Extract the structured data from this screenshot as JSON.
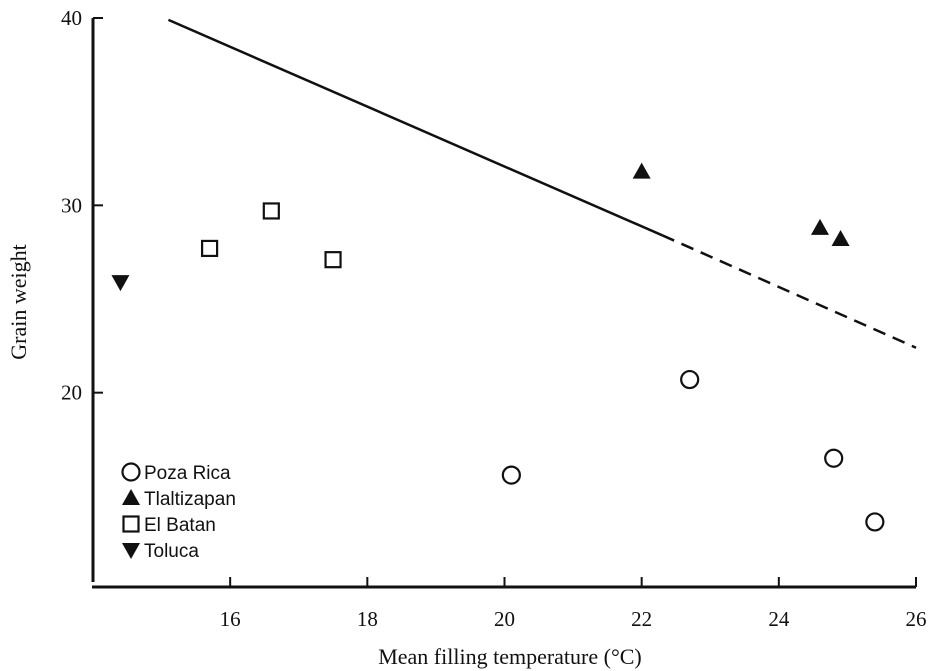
{
  "chart_data": {
    "type": "scatter",
    "xlabel": "Mean filling temperature (°C)",
    "ylabel": "Grain weight",
    "xlim": [
      14,
      26
    ],
    "ylim": [
      10,
      40
    ],
    "x_ticks": [
      {
        "value": 16,
        "label": "16"
      },
      {
        "value": 18,
        "label": "18"
      },
      {
        "value": 20,
        "label": "20"
      },
      {
        "value": 22,
        "label": "22"
      },
      {
        "value": 24,
        "label": "24"
      },
      {
        "value": 26,
        "label": "26"
      }
    ],
    "y_ticks": [
      {
        "value": 20,
        "label": "20"
      },
      {
        "value": 30,
        "label": "30"
      },
      {
        "value": 40,
        "label": "40"
      }
    ],
    "series": [
      {
        "name": "Poza Rica",
        "marker": "open-circle",
        "points": [
          [
            20.1,
            15.6
          ],
          [
            22.7,
            20.7
          ],
          [
            24.8,
            16.5
          ],
          [
            25.4,
            13.1
          ]
        ]
      },
      {
        "name": "Tlaltizapan",
        "marker": "filled-triangle-up",
        "points": [
          [
            22.0,
            31.8
          ],
          [
            24.6,
            28.8
          ],
          [
            24.9,
            28.2
          ]
        ]
      },
      {
        "name": "El Batan",
        "marker": "open-square",
        "points": [
          [
            15.7,
            27.7
          ],
          [
            16.6,
            29.7
          ],
          [
            17.5,
            27.1
          ]
        ]
      },
      {
        "name": "Toluca",
        "marker": "filled-triangle-down",
        "points": [
          [
            14.4,
            25.9
          ]
        ]
      }
    ],
    "reference_line": {
      "solid": [
        [
          15.1,
          39.9
        ],
        [
          22.3,
          28.4
        ]
      ],
      "dashed": [
        [
          22.3,
          28.4
        ],
        [
          26.0,
          22.4
        ]
      ]
    },
    "legend_position": "bottom-left",
    "grid": false
  }
}
